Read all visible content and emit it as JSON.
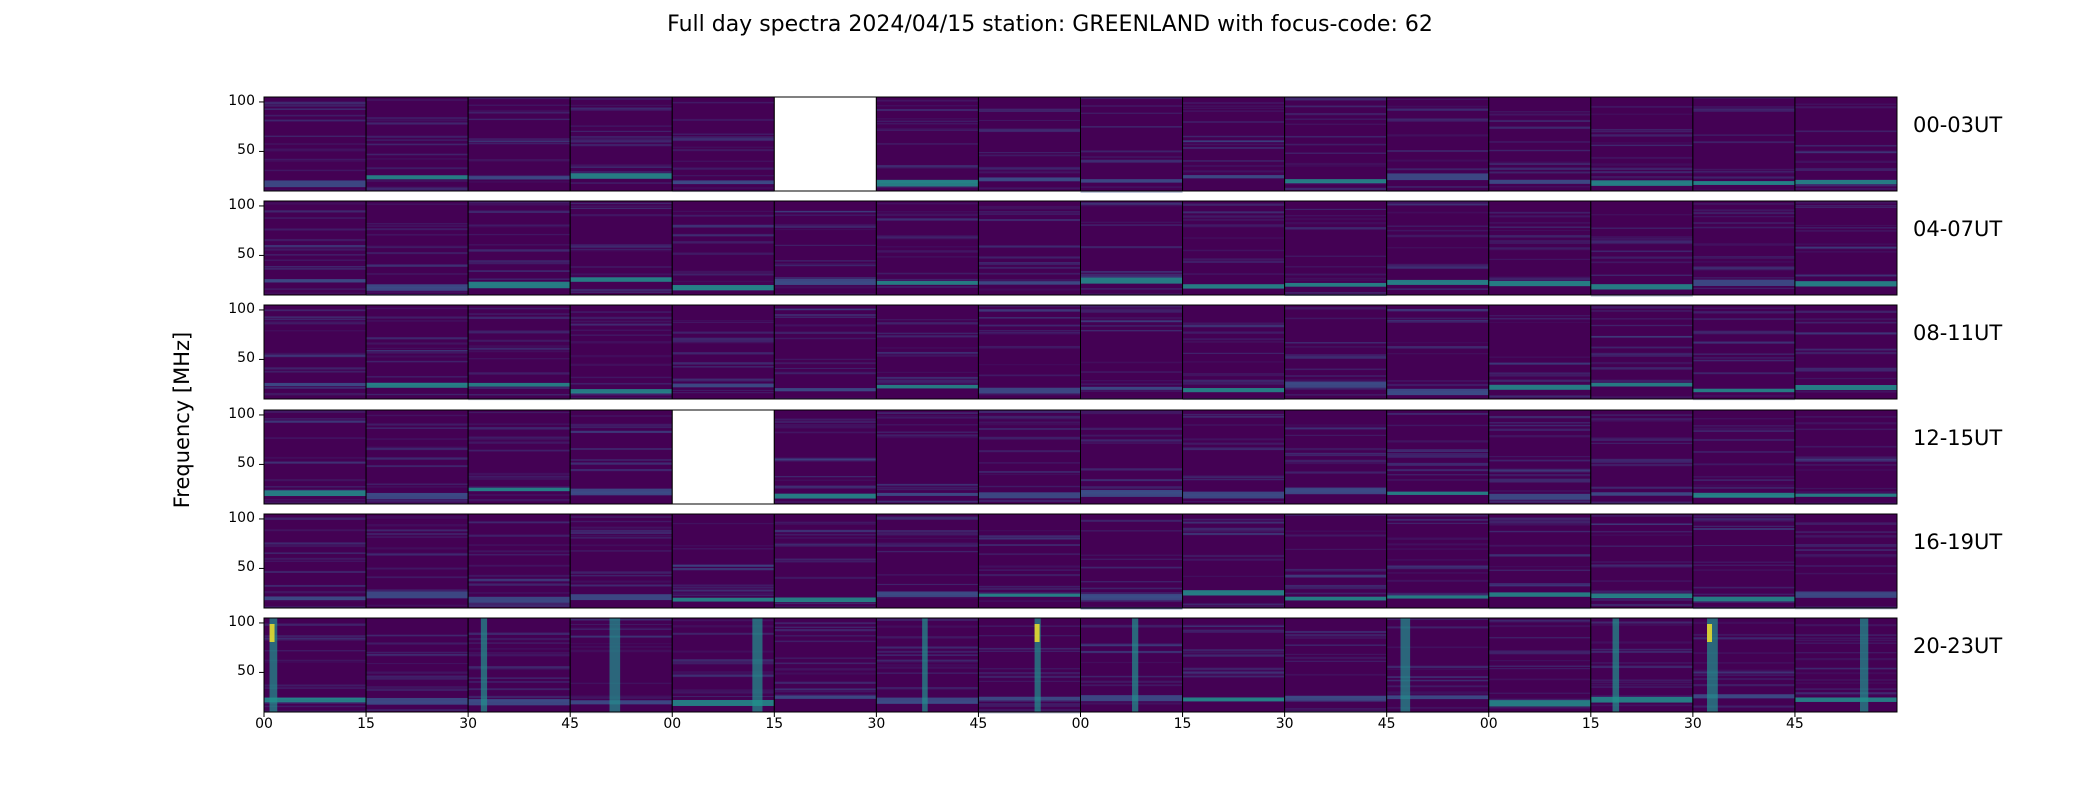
{
  "title": "Full day spectra 2024/04/15 station: GREENLAND with focus-code: 62",
  "chart_data": {
    "type": "heatmap",
    "title": "Full day spectra 2024/04/15 station: GREENLAND with focus-code: 62",
    "ylabel": "Frequency [MHz]",
    "xlabel": "",
    "colormap": "viridis",
    "ylim": [
      10,
      105
    ],
    "yticks": [
      "100",
      "50"
    ],
    "xticks": [
      "00",
      "15",
      "30",
      "45",
      "00",
      "15",
      "30",
      "45",
      "00",
      "15",
      "30",
      "45",
      "00",
      "15",
      "30",
      "45"
    ],
    "rows": [
      {
        "label": "00-03UT",
        "missing_panels": [
          5
        ]
      },
      {
        "label": "04-07UT",
        "missing_panels": []
      },
      {
        "label": "08-11UT",
        "missing_panels": []
      },
      {
        "label": "12-15UT",
        "missing_panels": [
          4
        ]
      },
      {
        "label": "16-19UT",
        "missing_panels": []
      },
      {
        "label": "20-23UT",
        "missing_panels": []
      }
    ],
    "panels_per_row": 16,
    "grid": false
  },
  "colors": {
    "background": "#440154",
    "low": "#46085c",
    "mid": "#3b528b",
    "high": "#21918c",
    "peak": "#fde725"
  }
}
